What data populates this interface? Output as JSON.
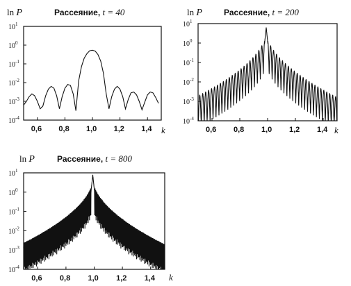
{
  "chart_data": [
    {
      "type": "line",
      "title": "Рассеяние,",
      "title_param": "t = 40",
      "ylabel_prefix": "ln",
      "ylabel_var": "P",
      "xlabel": "k",
      "y_scale": "log",
      "xlim": [
        0.5,
        1.5
      ],
      "ylim_exp": [
        -4,
        1
      ],
      "x_tick_labels": [
        "0,6",
        "0,8",
        "1,0",
        "1,2",
        "1,4"
      ],
      "x_tick_values": [
        0.6,
        0.8,
        1.0,
        1.2,
        1.4
      ],
      "y_tick_exponents": [
        1,
        0,
        -1,
        -2,
        -3,
        -4
      ],
      "y_tick_base": "10",
      "grid": false,
      "series": [
        {
          "x": [
            0.5,
            0.52,
            0.54,
            0.56,
            0.58,
            0.6,
            0.62,
            0.64,
            0.66,
            0.68,
            0.7,
            0.72,
            0.74,
            0.76,
            0.78,
            0.8,
            0.82,
            0.84,
            0.86,
            0.88,
            0.9,
            0.92,
            0.94,
            0.96,
            0.98,
            1.0,
            1.02,
            1.04,
            1.06,
            1.08,
            1.1,
            1.12,
            1.14,
            1.16,
            1.18,
            1.2,
            1.22,
            1.24,
            1.26,
            1.28,
            1.3,
            1.32,
            1.34,
            1.36,
            1.38,
            1.4,
            1.42,
            1.44,
            1.46,
            1.48
          ],
          "y": [
            -3.2,
            -3.0,
            -2.75,
            -2.6,
            -2.7,
            -3.0,
            -3.4,
            -3.25,
            -2.7,
            -2.35,
            -2.2,
            -2.3,
            -2.7,
            -3.4,
            -2.75,
            -2.3,
            -2.1,
            -2.15,
            -2.6,
            -3.5,
            -1.9,
            -1.15,
            -0.7,
            -0.45,
            -0.3,
            -0.27,
            -0.32,
            -0.5,
            -0.85,
            -1.5,
            -2.6,
            -3.4,
            -2.75,
            -2.35,
            -2.2,
            -2.35,
            -2.75,
            -3.4,
            -2.9,
            -2.55,
            -2.5,
            -2.65,
            -3.0,
            -3.45,
            -3.05,
            -2.65,
            -2.5,
            -2.55,
            -2.8,
            -3.1
          ]
        }
      ]
    },
    {
      "type": "line",
      "title": "Рассеяние,",
      "title_param": "t = 200",
      "ylabel_prefix": "ln",
      "ylabel_var": "P",
      "xlabel": "k",
      "y_scale": "log",
      "xlim": [
        0.5,
        1.5
      ],
      "ylim_exp": [
        -4,
        1
      ],
      "x_tick_labels": [
        "0,6",
        "0,8",
        "1,0",
        "1,2",
        "1,4"
      ],
      "x_tick_values": [
        0.6,
        0.8,
        1.0,
        1.2,
        1.4
      ],
      "y_tick_exponents": [
        1,
        0,
        -1,
        -2,
        -3,
        -4
      ],
      "y_tick_base": "10",
      "grid": false,
      "peak_x": 0.99,
      "peak_y": 0.8,
      "oscillation_count_per_side": 24
    },
    {
      "type": "line",
      "title": "Рассеяние,",
      "title_param": "t = 800",
      "ylabel_prefix": "ln",
      "ylabel_var": "P",
      "xlabel": "k",
      "y_scale": "log",
      "xlim": [
        0.5,
        1.5
      ],
      "ylim_exp": [
        -4,
        1
      ],
      "x_tick_labels": [
        "0,6",
        "0,8",
        "1,0",
        "1,2",
        "1,4"
      ],
      "x_tick_values": [
        0.6,
        0.8,
        1.0,
        1.2,
        1.4
      ],
      "y_tick_exponents": [
        1,
        0,
        -1,
        -2,
        -3,
        -4
      ],
      "y_tick_base": "10",
      "grid": false,
      "peak_x": 0.99,
      "peak_y": 0.9,
      "oscillation_count_per_side": 110
    }
  ]
}
